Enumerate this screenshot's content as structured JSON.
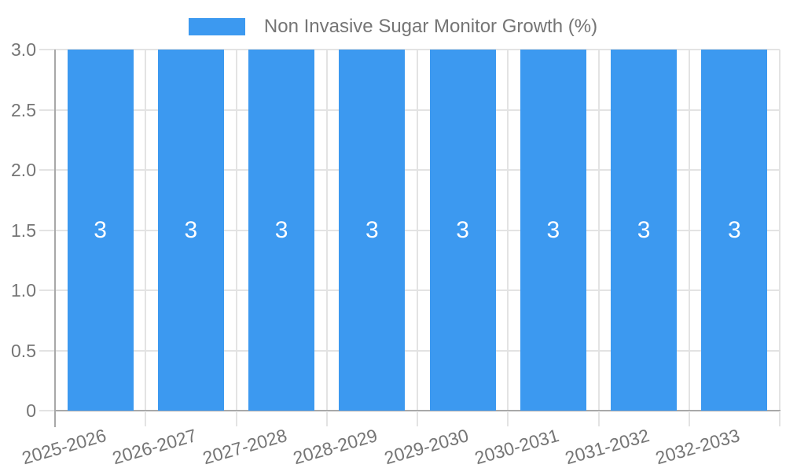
{
  "legend": {
    "label": "Non Invasive Sugar Monitor Growth (%)"
  },
  "colors": {
    "bar": "#3c99f0",
    "grid": "#e3e3e3",
    "axis": "#a8a8a8",
    "text": "#757575",
    "value_label": "#ffffff",
    "background": "#ffffff"
  },
  "chart_data": {
    "type": "bar",
    "title": "",
    "categories": [
      "2025-2026",
      "2026-2027",
      "2027-2028",
      "2028-2029",
      "2029-2030",
      "2030-2031",
      "2031-2032",
      "2032-2033"
    ],
    "series": [
      {
        "name": "Non Invasive Sugar Monitor Growth (%)",
        "values": [
          3,
          3,
          3,
          3,
          3,
          3,
          3,
          3
        ]
      }
    ],
    "value_labels": [
      "3",
      "3",
      "3",
      "3",
      "3",
      "3",
      "3",
      "3"
    ],
    "xlabel": "",
    "ylabel": "",
    "ylim": [
      0,
      3
    ],
    "yticks": [
      "0",
      "0.5",
      "1.0",
      "1.5",
      "2.0",
      "2.5",
      "3.0"
    ],
    "ytick_values": [
      0,
      0.5,
      1.0,
      1.5,
      2.0,
      2.5,
      3.0
    ],
    "grid": true,
    "legend_position": "top",
    "xtick_rotation_deg": -16
  }
}
